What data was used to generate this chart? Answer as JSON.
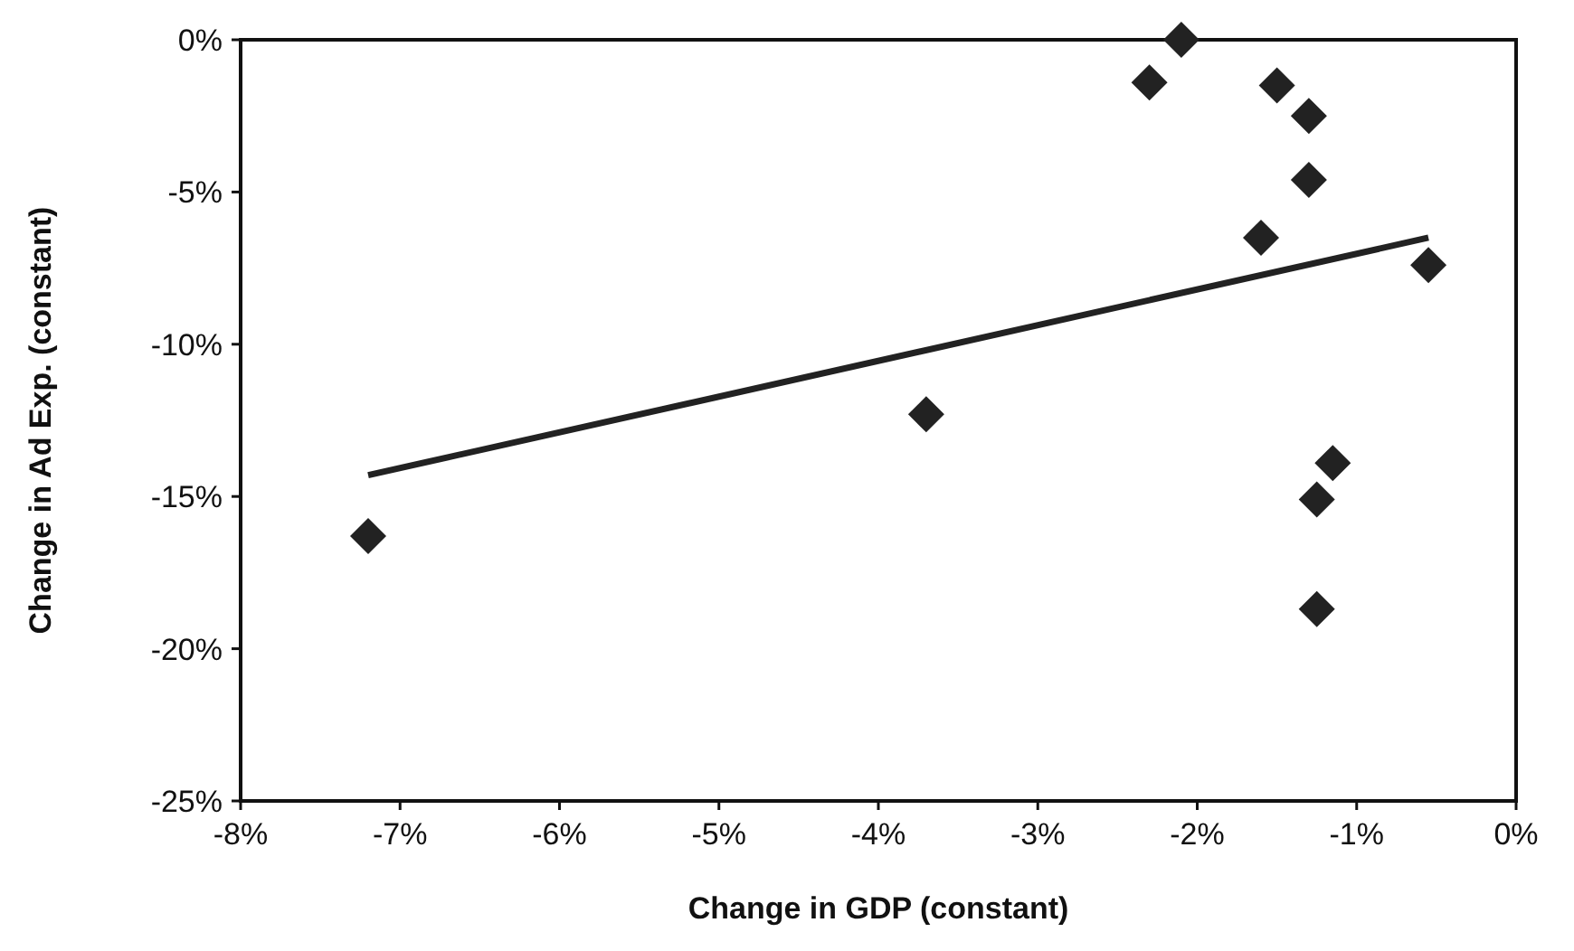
{
  "chart_data": {
    "type": "scatter",
    "xlabel": "Change in GDP (constant)",
    "ylabel": "Change in Ad Exp. (constant)",
    "series": [
      {
        "color": "#222222",
        "marker": "diamond",
        "x": [
          -7.2,
          -3.7,
          -2.3,
          -2.1,
          -1.5,
          -1.3,
          -1.3,
          -1.6,
          -0.55,
          -1.15,
          -1.25,
          -1.25
        ],
        "values": [
          -16.3,
          -12.3,
          -1.4,
          0,
          -1.5,
          -2.5,
          -4.6,
          -6.5,
          -7.4,
          -13.9,
          -15.1,
          -18.7
        ]
      },
      {
        "type": "line",
        "color": "#222222",
        "x": [
          -7.2,
          -0.55
        ],
        "values": [
          -14.3,
          -6.5
        ]
      }
    ],
    "xlim": [
      -8,
      0
    ],
    "ylim": [
      -25,
      0
    ],
    "xticks": [
      {
        "value": -8,
        "label": "-8%"
      },
      {
        "value": -7,
        "label": "-7%"
      },
      {
        "value": -6,
        "label": "-6%"
      },
      {
        "value": -5,
        "label": "-5%"
      },
      {
        "value": -4,
        "label": "-4%"
      },
      {
        "value": -3,
        "label": "-3%"
      },
      {
        "value": -2,
        "label": "-2%"
      },
      {
        "value": -1,
        "label": "-1%"
      },
      {
        "value": 0,
        "label": "0%"
      }
    ],
    "yticks": [
      {
        "value": -25,
        "label": "-25%"
      },
      {
        "value": -20,
        "label": "-20%"
      },
      {
        "value": -15,
        "label": "-15%"
      },
      {
        "value": -10,
        "label": "-10%"
      },
      {
        "value": -5,
        "label": "-5%"
      },
      {
        "value": 0,
        "label": "0%"
      }
    ],
    "grid": false
  }
}
